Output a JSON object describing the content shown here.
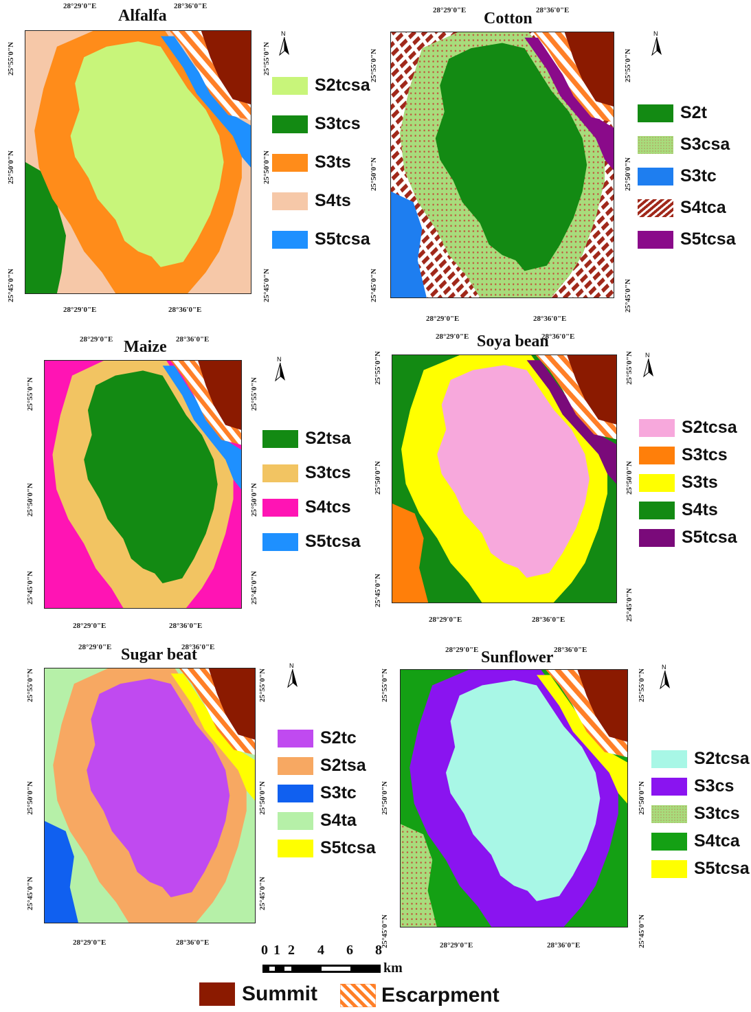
{
  "colors": {
    "summit": "#8b1a00",
    "escarpment": "#ff7f27"
  },
  "panels": [
    {
      "title": "Alfalfa",
      "x_ticks": [
        "28°29'0\"E",
        "28°36'0\"E"
      ],
      "y_ticks": [
        "25°55'0\"N",
        "25°50'0\"N",
        "25°45'0\"N"
      ],
      "legend": [
        {
          "label": "S2tcsa",
          "color": "#c8f57a"
        },
        {
          "label": "S3tcs",
          "color": "#138a13"
        },
        {
          "label": "S3ts",
          "color": "#ff8c1a"
        },
        {
          "label": "S4ts",
          "color": "#f6c8a8"
        },
        {
          "label": "S5tcsa",
          "color": "#1e90ff"
        }
      ]
    },
    {
      "title": "Cotton",
      "x_ticks": [
        "28°29'0\"E",
        "28°36'0\"E"
      ],
      "y_ticks": [
        "25°55'0\"N",
        "25°50'0\"N",
        "25°45'0\"N"
      ],
      "legend": [
        {
          "label": "S2t",
          "color": "#138a13"
        },
        {
          "label": "S3csa",
          "color": "#a8dc7c"
        },
        {
          "label": "S3tc",
          "color": "#1e7ef0"
        },
        {
          "label": "S4tca",
          "color": "#a0281a"
        },
        {
          "label": "S5tcsa",
          "color": "#8a0a8a"
        }
      ]
    },
    {
      "title": "Maize",
      "x_ticks": [
        "28°29'0\"E",
        "28°36'0\"E"
      ],
      "y_ticks": [
        "25°55'0\"N",
        "25°50'0\"N",
        "25°45'0\"N"
      ],
      "legend": [
        {
          "label": "S2tsa",
          "color": "#138a13"
        },
        {
          "label": "S3tcs",
          "color": "#f2c462"
        },
        {
          "label": "S4tcs",
          "color": "#ff14b4"
        },
        {
          "label": "S5tcsa",
          "color": "#1e90ff"
        }
      ]
    },
    {
      "title": "Soya bean",
      "x_ticks": [
        "28°29'0\"E",
        "28°36'0\"E"
      ],
      "y_ticks": [
        "25°55'0\"N",
        "25°50'0\"N",
        "25°45'0\"N"
      ],
      "legend": [
        {
          "label": "S2tcsa",
          "color": "#f7a8dc"
        },
        {
          "label": "S3tcs",
          "color": "#ff7f0a"
        },
        {
          "label": "S3ts",
          "color": "#ffff00"
        },
        {
          "label": "S4ts",
          "color": "#138a13"
        },
        {
          "label": "S5tcsa",
          "color": "#7a0a7a"
        }
      ]
    },
    {
      "title": "Sugar beat",
      "x_ticks": [
        "28°29'0\"E",
        "28°36'0\"E"
      ],
      "y_ticks": [
        "25°55'0\"N",
        "25°50'0\"N",
        "25°45'0\"N"
      ],
      "legend": [
        {
          "label": "S2tc",
          "color": "#c04af0"
        },
        {
          "label": "S2tsa",
          "color": "#f7a862"
        },
        {
          "label": "S3tc",
          "color": "#1060f0"
        },
        {
          "label": "S4ta",
          "color": "#b6f0a8"
        },
        {
          "label": "S5tcsa",
          "color": "#ffff00"
        }
      ]
    },
    {
      "title": "Sunflower",
      "x_ticks": [
        "28°29'0\"E",
        "28°36'0\"E"
      ],
      "y_ticks": [
        "25°55'0\"N",
        "25°50'0\"N",
        "25°45'0\"N"
      ],
      "legend": [
        {
          "label": "S2tcsa",
          "color": "#a8f7e6"
        },
        {
          "label": "S3cs",
          "color": "#8a14f0"
        },
        {
          "label": "S3tcs",
          "color": "#a8d87a"
        },
        {
          "label": "S4tca",
          "color": "#14a014"
        },
        {
          "label": "S5tcsa",
          "color": "#ffff00"
        }
      ]
    }
  ],
  "north_label": "N",
  "scale": {
    "ticks": [
      "0",
      "1",
      "2",
      "4",
      "6",
      "8"
    ],
    "unit": "km"
  },
  "bottom_legend": [
    {
      "label": "Summit"
    },
    {
      "label": "Escarpment"
    }
  ]
}
